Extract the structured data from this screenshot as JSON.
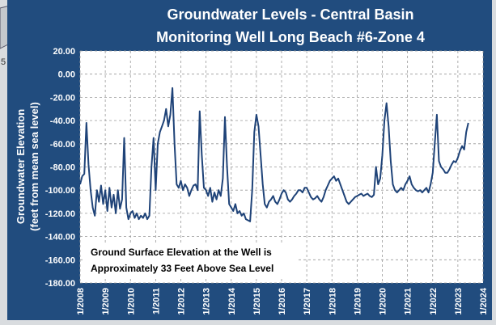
{
  "background_fragment": "5",
  "chart_data": {
    "type": "line",
    "title": [
      "Groundwater Levels - Central Basin",
      "Monitoring Well Long Beach #6-Zone 4"
    ],
    "y_label": [
      "Groundwater Elevation",
      "(feet from mean sea level)"
    ],
    "annotation": [
      "Ground Surface Elevation at the Well is",
      "Approximately 33 Feet  Above Sea Level"
    ],
    "color": "#1f4378",
    "grid": true,
    "xlim": [
      "2008-01",
      "2024-01"
    ],
    "xticks": [
      {
        "value": "2008-01",
        "label": "1/2008"
      },
      {
        "value": "2009-01",
        "label": "1/2009"
      },
      {
        "value": "2010-01",
        "label": "1/2010"
      },
      {
        "value": "2011-01",
        "label": "1/2011"
      },
      {
        "value": "2012-01",
        "label": "1/2012"
      },
      {
        "value": "2013-01",
        "label": "1/2013"
      },
      {
        "value": "2014-01",
        "label": "1/2014"
      },
      {
        "value": "2015-01",
        "label": "1/2015"
      },
      {
        "value": "2016-01",
        "label": "1/2016"
      },
      {
        "value": "2017-01",
        "label": "1/2017"
      },
      {
        "value": "2018-01",
        "label": "1/2018"
      },
      {
        "value": "2019-01",
        "label": "1/2019"
      },
      {
        "value": "2020-01",
        "label": "1/2020"
      },
      {
        "value": "2021-01",
        "label": "1/2021"
      },
      {
        "value": "2022-01",
        "label": "1/2022"
      },
      {
        "value": "2023-01",
        "label": "1/2023"
      },
      {
        "value": "2024-01",
        "label": "1/2024"
      }
    ],
    "ylim": [
      -180,
      20
    ],
    "yticks": [
      {
        "value": 20,
        "label": "20.00"
      },
      {
        "value": 0,
        "label": "0.00"
      },
      {
        "value": -20,
        "label": "-20.00"
      },
      {
        "value": -40,
        "label": "-40.00"
      },
      {
        "value": -60,
        "label": "-60.00"
      },
      {
        "value": -80,
        "label": "-80.00"
      },
      {
        "value": -100,
        "label": "-100.00"
      },
      {
        "value": -120,
        "label": "-120.00"
      },
      {
        "value": -140,
        "label": "-140.00"
      },
      {
        "value": -160,
        "label": "-160.00"
      },
      {
        "value": -180,
        "label": "-180.00"
      }
    ],
    "x": [
      "2008-01",
      "2008-02",
      "2008-03",
      "2008-04",
      "2008-05",
      "2008-06",
      "2008-07",
      "2008-08",
      "2008-09",
      "2008-10",
      "2008-11",
      "2008-12",
      "2009-01",
      "2009-02",
      "2009-03",
      "2009-04",
      "2009-05",
      "2009-06",
      "2009-07",
      "2009-08",
      "2009-09",
      "2009-10",
      "2009-11",
      "2009-12",
      "2010-01",
      "2010-02",
      "2010-03",
      "2010-04",
      "2010-05",
      "2010-06",
      "2010-07",
      "2010-08",
      "2010-09",
      "2010-10",
      "2010-11",
      "2010-12",
      "2011-01",
      "2011-02",
      "2011-03",
      "2011-04",
      "2011-05",
      "2011-06",
      "2011-07",
      "2011-08",
      "2011-09",
      "2011-10",
      "2011-11",
      "2011-12",
      "2012-01",
      "2012-02",
      "2012-03",
      "2012-04",
      "2012-05",
      "2012-06",
      "2012-07",
      "2012-08",
      "2012-09",
      "2012-10",
      "2012-11",
      "2012-12",
      "2013-01",
      "2013-02",
      "2013-03",
      "2013-04",
      "2013-05",
      "2013-06",
      "2013-07",
      "2013-08",
      "2013-09",
      "2013-10",
      "2013-11",
      "2013-12",
      "2014-01",
      "2014-02",
      "2014-03",
      "2014-04",
      "2014-05",
      "2014-06",
      "2014-07",
      "2014-08",
      "2014-09",
      "2014-10",
      "2014-11",
      "2014-12",
      "2015-01",
      "2015-02",
      "2015-03",
      "2015-04",
      "2015-05",
      "2015-06",
      "2015-07",
      "2015-08",
      "2015-09",
      "2015-10",
      "2015-11",
      "2015-12",
      "2016-01",
      "2016-02",
      "2016-03",
      "2016-04",
      "2016-05",
      "2016-06",
      "2016-07",
      "2016-08",
      "2016-09",
      "2016-10",
      "2016-11",
      "2016-12",
      "2017-01",
      "2017-02",
      "2017-03",
      "2017-04",
      "2017-05",
      "2017-06",
      "2017-07",
      "2017-08",
      "2017-09",
      "2017-10",
      "2017-11",
      "2017-12",
      "2018-01",
      "2018-02",
      "2018-03",
      "2018-04",
      "2018-05",
      "2018-06",
      "2018-07",
      "2018-08",
      "2018-09",
      "2018-10",
      "2018-11",
      "2018-12",
      "2019-01",
      "2019-02",
      "2019-03",
      "2019-04",
      "2019-05",
      "2019-06",
      "2019-07",
      "2019-08",
      "2019-09",
      "2019-10",
      "2019-11",
      "2019-12",
      "2020-01",
      "2020-02",
      "2020-03",
      "2020-04",
      "2020-05",
      "2020-06",
      "2020-07",
      "2020-08",
      "2020-09",
      "2020-10",
      "2020-11",
      "2020-12",
      "2021-01",
      "2021-02",
      "2021-03",
      "2021-04",
      "2021-05",
      "2021-06",
      "2021-07",
      "2021-08",
      "2021-09",
      "2021-10",
      "2021-11",
      "2021-12",
      "2022-01",
      "2022-02",
      "2022-03",
      "2022-04",
      "2022-05",
      "2022-06",
      "2022-07",
      "2022-08",
      "2022-09",
      "2022-10",
      "2022-11",
      "2022-12",
      "2023-01",
      "2023-02",
      "2023-03",
      "2023-04",
      "2023-05",
      "2023-06"
    ],
    "values": [
      -95,
      -88,
      -86,
      -42,
      -78,
      -100,
      -115,
      -122,
      -100,
      -110,
      -96,
      -112,
      -100,
      -118,
      -98,
      -115,
      -104,
      -120,
      -100,
      -116,
      -108,
      -55,
      -115,
      -125,
      -120,
      -118,
      -124,
      -120,
      -125,
      -122,
      -124,
      -120,
      -125,
      -122,
      -80,
      -55,
      -100,
      -60,
      -50,
      -45,
      -40,
      -30,
      -45,
      -35,
      -12,
      -60,
      -95,
      -98,
      -92,
      -100,
      -95,
      -98,
      -105,
      -100,
      -96,
      -95,
      -100,
      -32,
      -70,
      -98,
      -100,
      -105,
      -98,
      -110,
      -102,
      -108,
      -100,
      -105,
      -90,
      -37,
      -80,
      -112,
      -115,
      -118,
      -112,
      -120,
      -118,
      -122,
      -120,
      -125,
      -126,
      -127,
      -100,
      -50,
      -35,
      -45,
      -70,
      -95,
      -112,
      -115,
      -110,
      -108,
      -105,
      -110,
      -112,
      -108,
      -103,
      -100,
      -102,
      -108,
      -110,
      -108,
      -105,
      -103,
      -100,
      -100,
      -102,
      -98,
      -98,
      -102,
      -106,
      -108,
      -107,
      -105,
      -108,
      -110,
      -106,
      -100,
      -96,
      -92,
      -90,
      -88,
      -92,
      -90,
      -95,
      -100,
      -105,
      -110,
      -112,
      -110,
      -108,
      -106,
      -105,
      -104,
      -103,
      -105,
      -104,
      -103,
      -105,
      -106,
      -104,
      -80,
      -95,
      -90,
      -70,
      -40,
      -25,
      -45,
      -75,
      -95,
      -100,
      -102,
      -100,
      -98,
      -100,
      -95,
      -92,
      -88,
      -95,
      -98,
      -100,
      -101,
      -100,
      -102,
      -100,
      -98,
      -102,
      -95,
      -85,
      -60,
      -35,
      -75,
      -80,
      -82,
      -85,
      -85,
      -82,
      -78,
      -75,
      -76,
      -72,
      -66,
      -62,
      -65,
      -50,
      -42
    ]
  }
}
